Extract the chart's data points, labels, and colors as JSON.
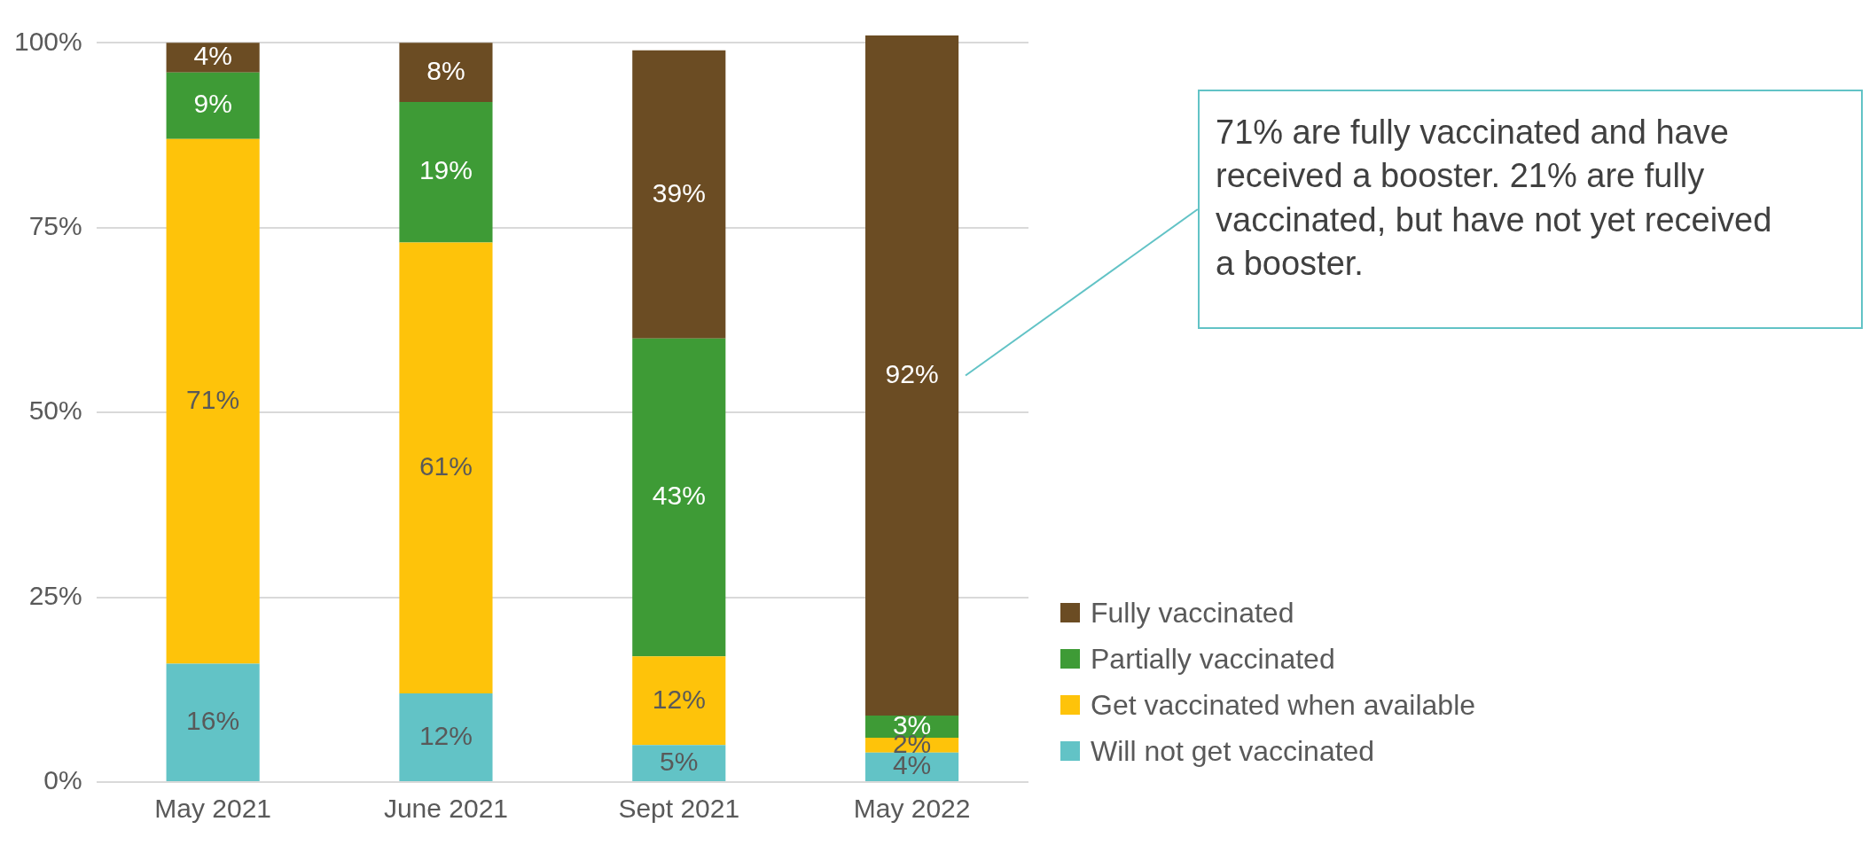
{
  "chart_data": {
    "type": "bar",
    "stacked": true,
    "categories": [
      "May 2021",
      "June 2021",
      "Sept 2021",
      "May 2022"
    ],
    "ylim": [
      0,
      101
    ],
    "yticks": [
      {
        "value": 0,
        "label": "0%"
      },
      {
        "value": 25,
        "label": "25%"
      },
      {
        "value": 50,
        "label": "50%"
      },
      {
        "value": 75,
        "label": "75%"
      },
      {
        "value": 100,
        "label": "100%"
      }
    ],
    "grid": "y",
    "legend": "bottom right",
    "series": [
      {
        "name": "Will not get vaccinated",
        "color": "#62c3c6",
        "values": [
          16,
          12,
          5,
          4
        ],
        "value_labels": [
          "16%",
          "12%",
          "5%",
          "4%"
        ]
      },
      {
        "name": "Get vaccinated when available",
        "color": "#fec30a",
        "values": [
          71,
          61,
          12,
          2
        ],
        "value_labels": [
          "71%",
          "61%",
          "12%",
          "2%"
        ]
      },
      {
        "name": "Partially vaccinated",
        "color": "#3e9b36",
        "values": [
          9,
          19,
          43,
          3
        ],
        "value_labels": [
          "9%",
          "19%",
          "43%",
          "3%"
        ]
      },
      {
        "name": "Fully vaccinated",
        "color": "#6b4c23",
        "values": [
          4,
          8,
          39,
          92
        ],
        "value_labels": [
          "4%",
          "8%",
          "39%",
          "92%"
        ]
      }
    ],
    "annotations": [
      "71% are fully vaccinated and have received a booster. 21% are fully vaccinated, but have not yet received a booster."
    ]
  }
}
